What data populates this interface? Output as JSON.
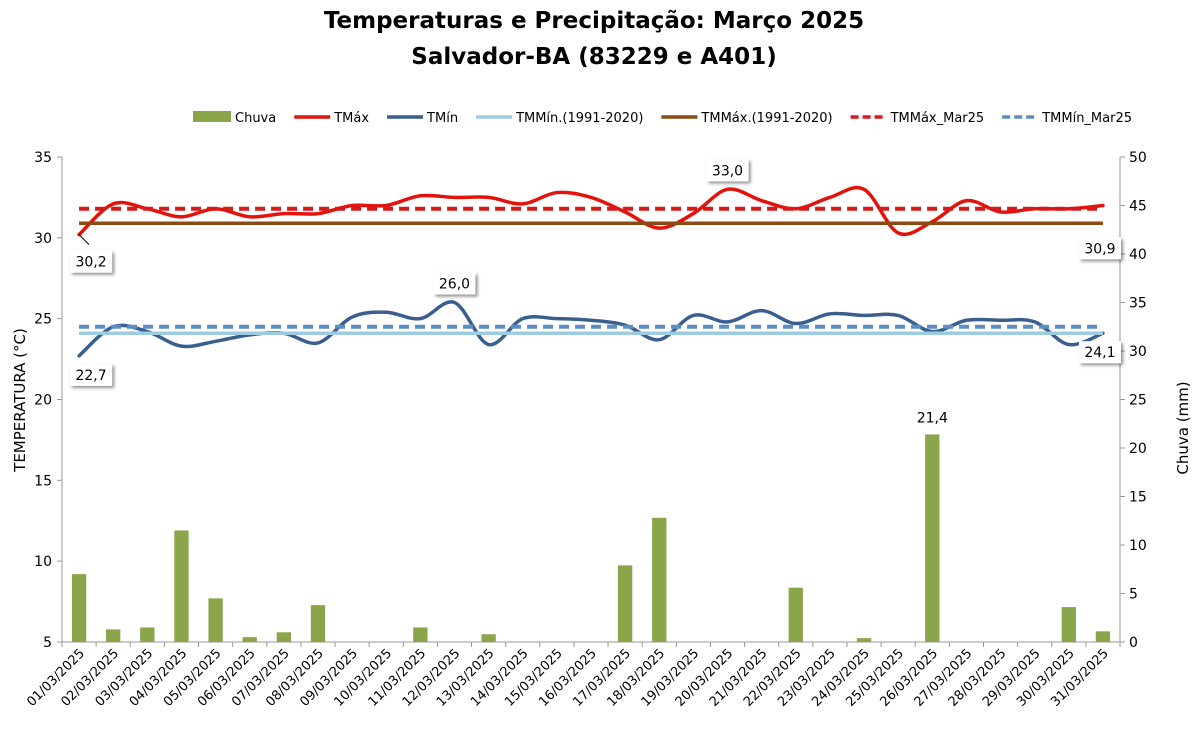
{
  "chart_data": {
    "type": "bar+line",
    "title": [
      "Temperaturas e Precipitação: Março 2025",
      "Salvador-BA (83229 e A401)"
    ],
    "ylabel_left": "TEMPERATURA (°C)",
    "ylabel_right": "Chuva (mm)",
    "ylim_left": [
      5,
      35
    ],
    "yticks_left": [
      "5",
      "10",
      "15",
      "20",
      "25",
      "30",
      "35"
    ],
    "ylim_right": [
      0,
      50
    ],
    "yticks_right": [
      "0",
      "5",
      "10",
      "15",
      "20",
      "25",
      "30",
      "35",
      "40",
      "45",
      "50"
    ],
    "grid": false,
    "legend_position": "top",
    "categories": [
      "01/03/2025",
      "02/03/2025",
      "03/03/2025",
      "04/03/2025",
      "05/03/2025",
      "06/03/2025",
      "07/03/2025",
      "08/03/2025",
      "09/03/2025",
      "10/03/2025",
      "11/03/2025",
      "12/03/2025",
      "13/03/2025",
      "14/03/2025",
      "15/03/2025",
      "16/03/2025",
      "17/03/2025",
      "18/03/2025",
      "19/03/2025",
      "20/03/2025",
      "21/03/2025",
      "22/03/2025",
      "23/03/2025",
      "24/03/2025",
      "25/03/2025",
      "26/03/2025",
      "27/03/2025",
      "28/03/2025",
      "29/03/2025",
      "30/03/2025",
      "31/03/2025"
    ],
    "series": [
      {
        "name": "Chuva",
        "kind": "bar",
        "axis": "right",
        "color": "#8BA64A",
        "values": [
          7.0,
          1.3,
          1.5,
          11.5,
          4.5,
          0.5,
          1.0,
          3.8,
          0,
          0,
          1.5,
          0,
          0.8,
          0,
          0,
          0,
          7.9,
          12.8,
          0,
          0,
          0,
          5.6,
          0,
          0.4,
          0,
          21.4,
          0,
          0,
          0,
          3.6,
          1.1
        ],
        "labels": [
          {
            "index": 25,
            "text": "21,4"
          }
        ]
      },
      {
        "name": "TMáx",
        "kind": "line",
        "axis": "left",
        "color": "#E3120B",
        "values": [
          30.2,
          32.1,
          31.8,
          31.3,
          31.8,
          31.3,
          31.5,
          31.5,
          32.0,
          32.0,
          32.6,
          32.5,
          32.5,
          32.1,
          32.8,
          32.5,
          31.6,
          30.6,
          31.5,
          33.0,
          32.3,
          31.8,
          32.5,
          33.0,
          30.3,
          31.0,
          32.3,
          31.6,
          31.8,
          31.8,
          32.0
        ],
        "labels": [
          {
            "index": 0,
            "text": "30,2"
          },
          {
            "index": 19,
            "text": "33,0"
          }
        ]
      },
      {
        "name": "TMín",
        "kind": "line",
        "axis": "left",
        "color": "#3A5F8F",
        "values": [
          22.7,
          24.5,
          24.2,
          23.3,
          23.6,
          24.0,
          24.1,
          23.5,
          25.1,
          25.4,
          25.0,
          26.0,
          23.4,
          25.0,
          25.0,
          24.9,
          24.6,
          23.7,
          25.2,
          24.8,
          25.5,
          24.7,
          25.3,
          25.2,
          25.2,
          24.2,
          24.9,
          24.9,
          24.8,
          23.4,
          24.1
        ],
        "labels": [
          {
            "index": 0,
            "text": "22,7"
          },
          {
            "index": 11,
            "text": "26,0"
          },
          {
            "index": 30,
            "text": "24,1"
          }
        ]
      },
      {
        "name": "TMMín.(1991-2020)",
        "kind": "hline",
        "axis": "left",
        "color": "#9DCBE0",
        "value": 24.1
      },
      {
        "name": "TMMáx.(1991-2020)",
        "kind": "hline",
        "axis": "left",
        "color": "#8B4A12",
        "value": 30.9,
        "labels": [
          {
            "index": 30,
            "text": "30,9"
          }
        ]
      },
      {
        "name": "TMMáx_Mar25",
        "kind": "hline-dashed",
        "axis": "left",
        "color": "#D7191C",
        "value": 31.8
      },
      {
        "name": "TMMín_Mar25",
        "kind": "hline-dashed",
        "axis": "left",
        "color": "#5B8EC4",
        "value": 24.5
      }
    ]
  }
}
